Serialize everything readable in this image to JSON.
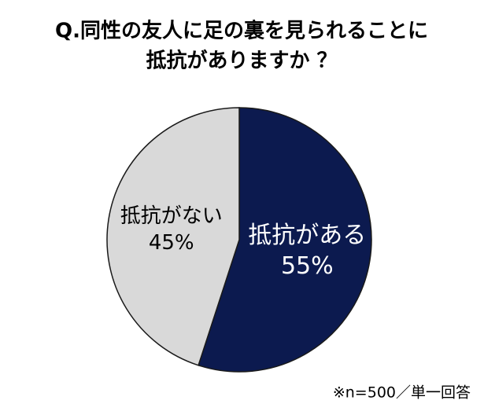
{
  "chart_data": {
    "type": "pie",
    "title": [
      "Q.同性の友人に足の裏を見られることに",
      "抵抗がありますか ？"
    ],
    "categories": [
      "抵抗がある",
      "抵抗がない"
    ],
    "values": [
      55,
      45
    ],
    "value_labels": [
      "55%",
      "45%"
    ],
    "colors": [
      "#0c1a4f",
      "#d9d9d9"
    ],
    "label_colors": [
      "#ffffff",
      "#000000"
    ],
    "note": "※n=500／単一回答"
  }
}
